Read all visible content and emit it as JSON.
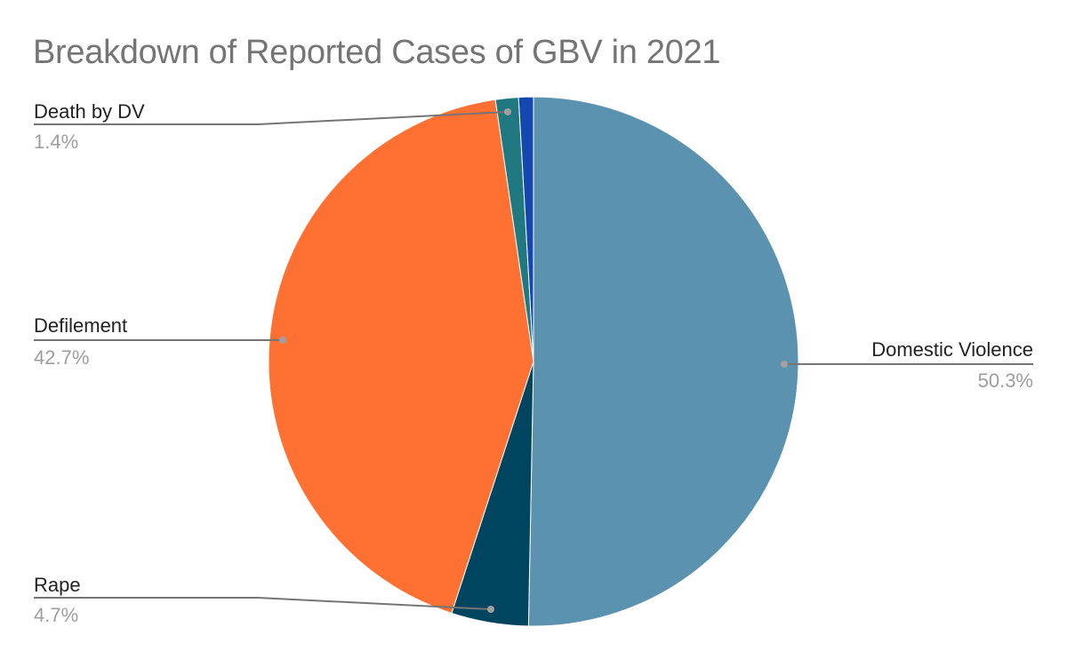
{
  "chart_data": {
    "type": "pie",
    "title": "Breakdown of Reported Cases of GBV in 2021",
    "categories": [
      "Domestic Violence",
      "Rape",
      "Defilement",
      "Death by DV",
      "Other (unlabeled)"
    ],
    "values": [
      50.3,
      4.7,
      42.7,
      1.4,
      0.9
    ],
    "value_labels": [
      "50.3%",
      "4.7%",
      "42.7%",
      "1.4%",
      ""
    ],
    "colors": [
      "#5b92b0",
      "#004560",
      "#ff7033",
      "#207880",
      "#1447b0"
    ],
    "legend": "none (callout labels)",
    "start_angle_deg": 0,
    "direction": "clockwise"
  },
  "labels": {
    "domestic_violence": {
      "name": "Domestic Violence",
      "pct": "50.3%"
    },
    "rape": {
      "name": "Rape",
      "pct": "4.7%"
    },
    "defilement": {
      "name": "Defilement",
      "pct": "42.7%"
    },
    "death_by_dv": {
      "name": "Death by DV",
      "pct": "1.4%"
    }
  }
}
